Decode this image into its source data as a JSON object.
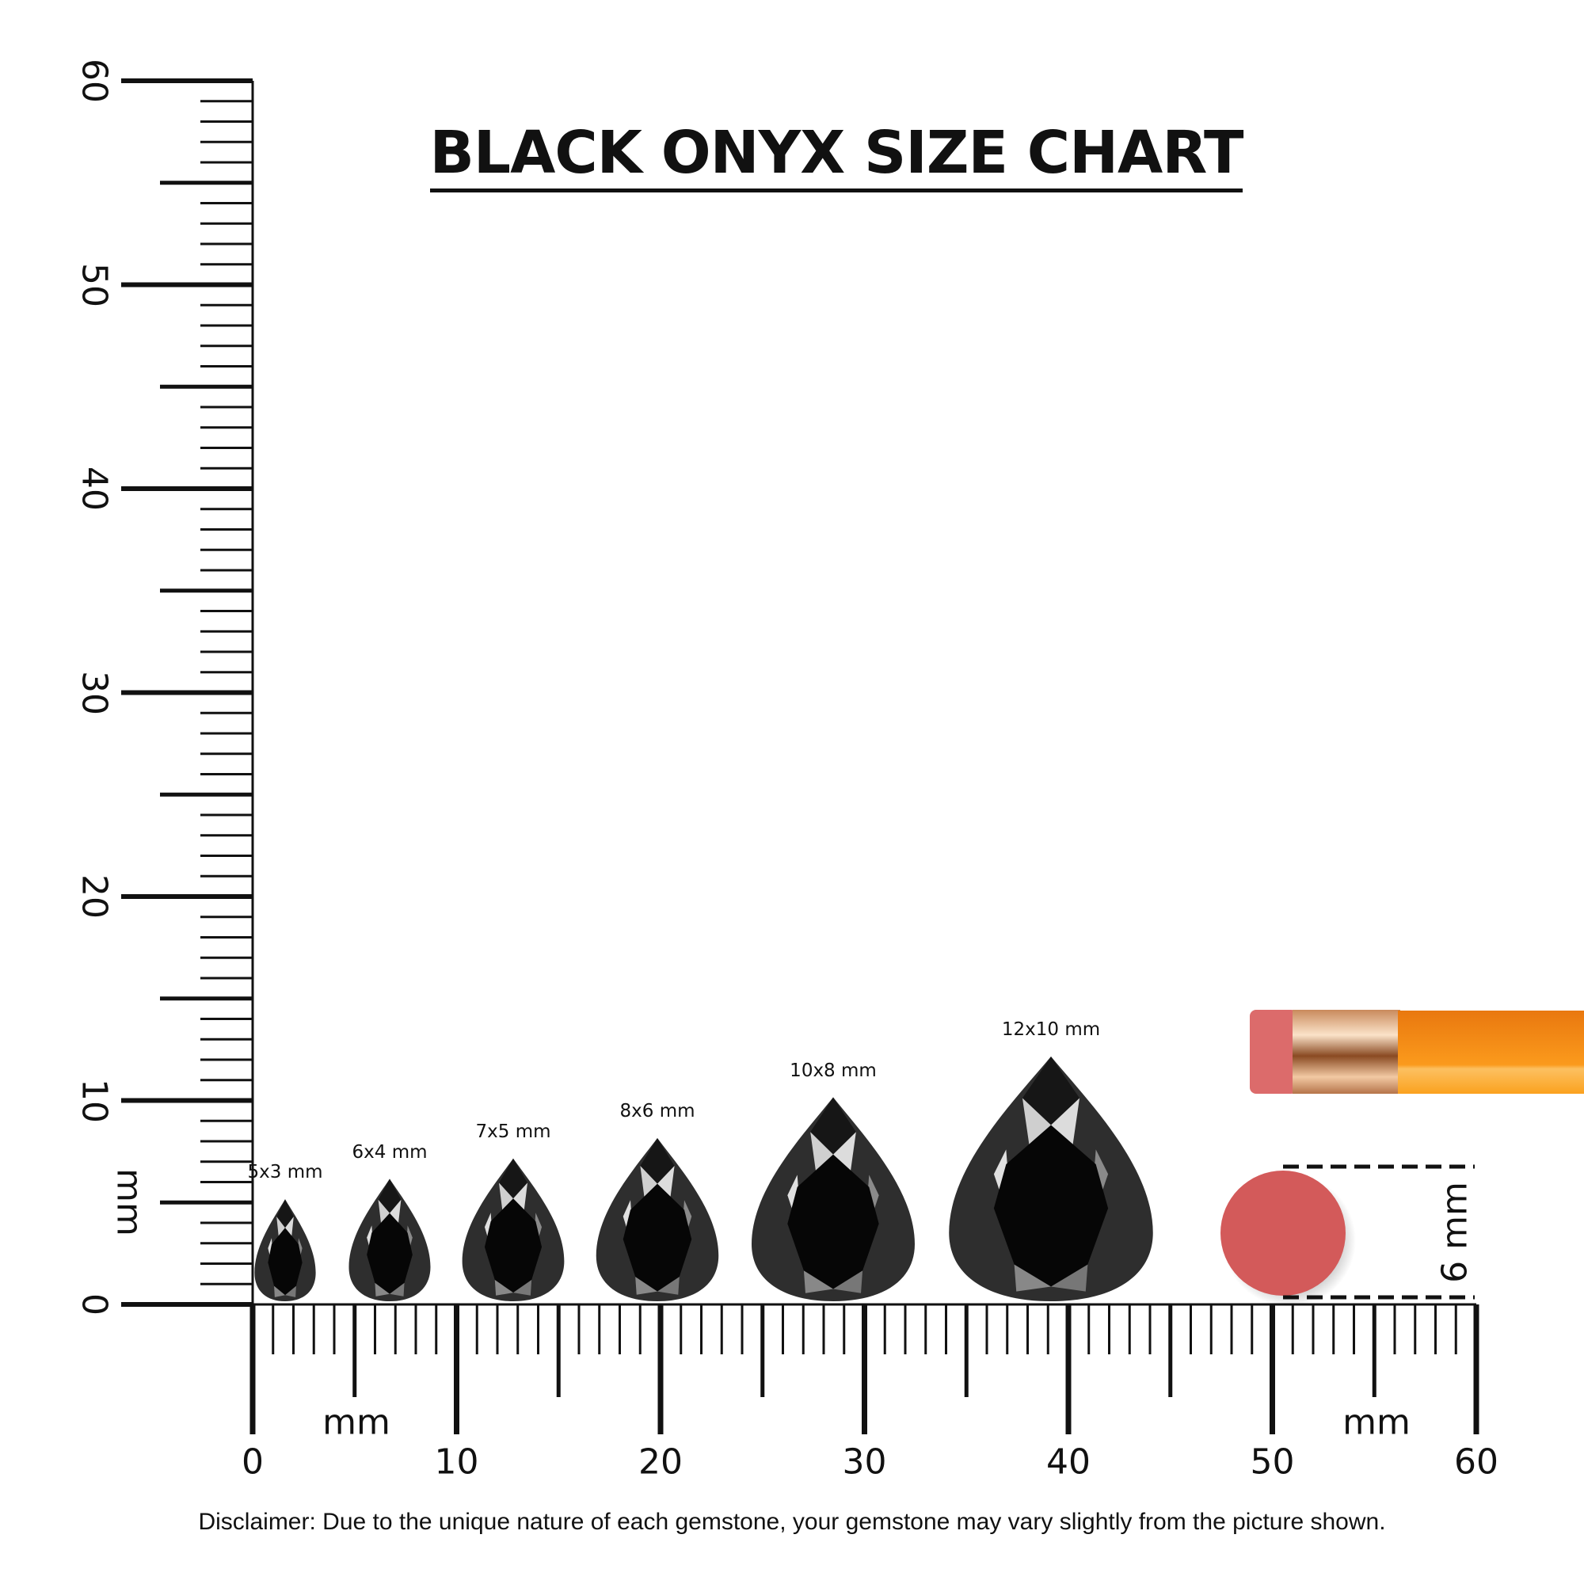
{
  "title": "BLACK ONYX SIZE CHART",
  "ruler": {
    "unit": "mm",
    "horizontal_labels": [
      "0",
      "10",
      "20",
      "30",
      "40",
      "50",
      "60"
    ],
    "vertical_labels": [
      "0",
      "10",
      "20",
      "30",
      "40",
      "50",
      "60"
    ],
    "range_mm": [
      0,
      60
    ]
  },
  "gems": [
    {
      "label": "5x3 mm",
      "length_mm": 5,
      "width_mm": 3
    },
    {
      "label": "6x4 mm",
      "length_mm": 6,
      "width_mm": 4
    },
    {
      "label": "7x5 mm",
      "length_mm": 7,
      "width_mm": 5
    },
    {
      "label": "8x6 mm",
      "length_mm": 8,
      "width_mm": 6
    },
    {
      "label": "10x8 mm",
      "length_mm": 10,
      "width_mm": 8
    },
    {
      "label": "12x10 mm",
      "length_mm": 12,
      "width_mm": 10
    }
  ],
  "reference": {
    "label": "6 mm",
    "object": "pencil eraser",
    "eraser_color": "#d35a5a",
    "pencil_color": "#f7931e"
  },
  "disclaimer": "Disclaimer: Due to the unique nature of each gemstone, your gemstone may vary slightly from the picture shown."
}
